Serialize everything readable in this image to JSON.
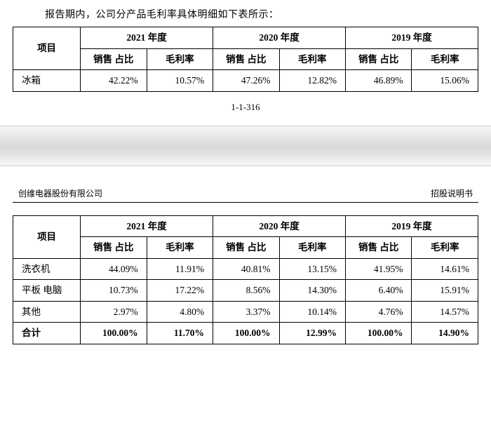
{
  "intro_text": "报告期内，公司分产品毛利率具体明细如下表所示：",
  "pagenum": "1-1-316",
  "header_company": "创维电器股份有限公司",
  "header_doc": "招股说明书",
  "col_header_item": "项目",
  "year_headers": [
    "2021 年度",
    "2020 年度",
    "2019 年度"
  ],
  "sub_headers": [
    "销售\n占比",
    "毛利率"
  ],
  "table1_rows": [
    {
      "label": "冰箱",
      "vals": [
        "42.22%",
        "10.57%",
        "47.26%",
        "12.82%",
        "46.89%",
        "15.06%"
      ]
    }
  ],
  "table2_rows": [
    {
      "label": "洗衣机",
      "vals": [
        "44.09%",
        "11.91%",
        "40.81%",
        "13.15%",
        "41.95%",
        "14.61%"
      ],
      "bold": false
    },
    {
      "label": "平板\n电脑",
      "vals": [
        "10.73%",
        "17.22%",
        "8.56%",
        "14.30%",
        "6.40%",
        "15.91%"
      ],
      "bold": false
    },
    {
      "label": "其他",
      "vals": [
        "2.97%",
        "4.80%",
        "3.37%",
        "10.14%",
        "4.76%",
        "14.57%"
      ],
      "bold": false
    },
    {
      "label": "合计",
      "vals": [
        "100.00%",
        "11.70%",
        "100.00%",
        "12.99%",
        "100.00%",
        "14.90%"
      ],
      "bold": true
    }
  ]
}
